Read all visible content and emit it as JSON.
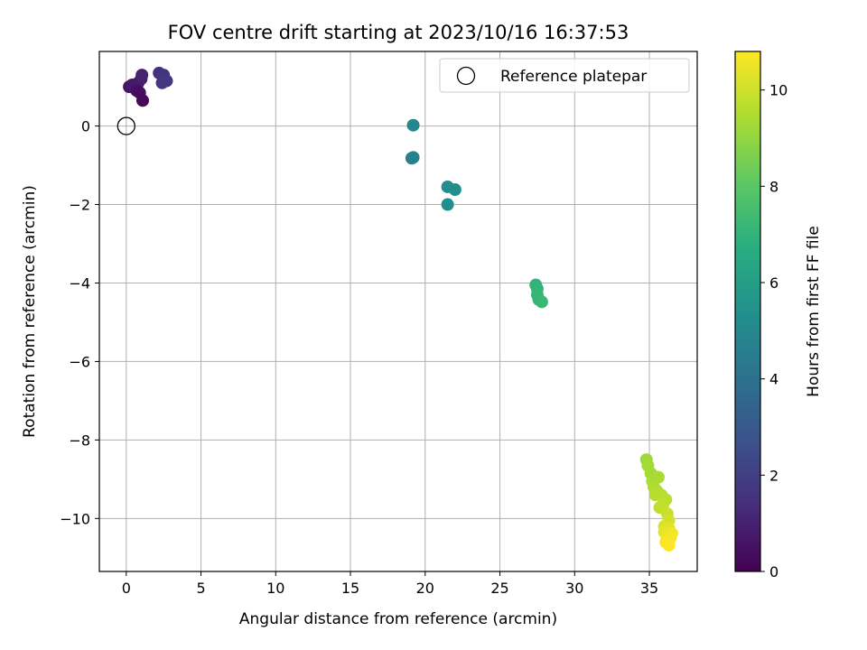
{
  "chart_data": {
    "type": "scatter",
    "title": "FOV centre drift starting at 2023/10/16 16:37:53",
    "xlabel": "Angular distance from reference (arcmin)",
    "ylabel": "Rotation from reference (arcmin)",
    "xlim": [
      -1.8,
      38.2
    ],
    "ylim": [
      -11.35,
      1.9
    ],
    "xticks": [
      0,
      5,
      10,
      15,
      20,
      25,
      30,
      35
    ],
    "yticks": [
      0,
      -2,
      -4,
      -6,
      -8,
      -10
    ],
    "grid": true,
    "legend": {
      "placement": "top-right",
      "entries": [
        "Reference platepar"
      ]
    },
    "reference_point": {
      "x": 0,
      "y": 0,
      "name": "Reference platepar"
    },
    "colorbar": {
      "label": "Hours from first FF file",
      "colormap": "viridis",
      "range": [
        0,
        10.8
      ],
      "ticks": [
        0,
        2,
        4,
        6,
        8,
        10
      ]
    },
    "points": [
      {
        "x": 0.2,
        "y": 1.0,
        "c": 0.6
      },
      {
        "x": 0.4,
        "y": 1.05,
        "c": 0.7
      },
      {
        "x": 0.6,
        "y": 0.95,
        "c": 0.8
      },
      {
        "x": 0.8,
        "y": 1.1,
        "c": 0.8
      },
      {
        "x": 1.0,
        "y": 1.2,
        "c": 0.9
      },
      {
        "x": 1.05,
        "y": 1.3,
        "c": 1.0
      },
      {
        "x": 0.7,
        "y": 0.9,
        "c": 0.5
      },
      {
        "x": 0.9,
        "y": 0.85,
        "c": 0.4
      },
      {
        "x": 1.1,
        "y": 0.65,
        "c": 0.2
      },
      {
        "x": 2.2,
        "y": 1.35,
        "c": 1.5
      },
      {
        "x": 2.5,
        "y": 1.3,
        "c": 1.6
      },
      {
        "x": 2.4,
        "y": 1.1,
        "c": 1.7
      },
      {
        "x": 2.7,
        "y": 1.15,
        "c": 1.8
      },
      {
        "x": 19.2,
        "y": 0.02,
        "c": 4.9
      },
      {
        "x": 19.1,
        "y": -0.82,
        "c": 4.6
      },
      {
        "x": 19.2,
        "y": -0.8,
        "c": 4.7
      },
      {
        "x": 21.5,
        "y": -1.55,
        "c": 5.2
      },
      {
        "x": 22.0,
        "y": -1.62,
        "c": 5.3
      },
      {
        "x": 21.5,
        "y": -2.0,
        "c": 5.3
      },
      {
        "x": 27.4,
        "y": -4.05,
        "c": 7.0
      },
      {
        "x": 27.5,
        "y": -4.15,
        "c": 7.0
      },
      {
        "x": 27.5,
        "y": -4.3,
        "c": 7.1
      },
      {
        "x": 27.6,
        "y": -4.42,
        "c": 7.1
      },
      {
        "x": 27.8,
        "y": -4.48,
        "c": 7.2
      },
      {
        "x": 34.8,
        "y": -8.5,
        "c": 9.2
      },
      {
        "x": 34.9,
        "y": -8.65,
        "c": 9.3
      },
      {
        "x": 35.1,
        "y": -8.85,
        "c": 9.3
      },
      {
        "x": 35.2,
        "y": -9.05,
        "c": 9.4
      },
      {
        "x": 35.6,
        "y": -8.95,
        "c": 9.4
      },
      {
        "x": 35.3,
        "y": -9.2,
        "c": 9.5
      },
      {
        "x": 35.5,
        "y": -9.3,
        "c": 9.5
      },
      {
        "x": 35.4,
        "y": -9.4,
        "c": 9.6
      },
      {
        "x": 35.8,
        "y": -9.4,
        "c": 9.6
      },
      {
        "x": 36.1,
        "y": -9.52,
        "c": 9.7
      },
      {
        "x": 35.7,
        "y": -9.72,
        "c": 9.7
      },
      {
        "x": 35.9,
        "y": -9.65,
        "c": 9.8
      },
      {
        "x": 36.2,
        "y": -9.88,
        "c": 9.9
      },
      {
        "x": 36.3,
        "y": -10.05,
        "c": 10.1
      },
      {
        "x": 36.0,
        "y": -10.2,
        "c": 10.2
      },
      {
        "x": 36.3,
        "y": -10.25,
        "c": 10.3
      },
      {
        "x": 36.0,
        "y": -10.35,
        "c": 10.4
      },
      {
        "x": 36.5,
        "y": -10.38,
        "c": 10.6
      },
      {
        "x": 36.2,
        "y": -10.45,
        "c": 10.5
      },
      {
        "x": 36.4,
        "y": -10.5,
        "c": 10.7
      },
      {
        "x": 36.1,
        "y": -10.6,
        "c": 10.7
      },
      {
        "x": 36.3,
        "y": -10.68,
        "c": 10.8
      }
    ]
  }
}
